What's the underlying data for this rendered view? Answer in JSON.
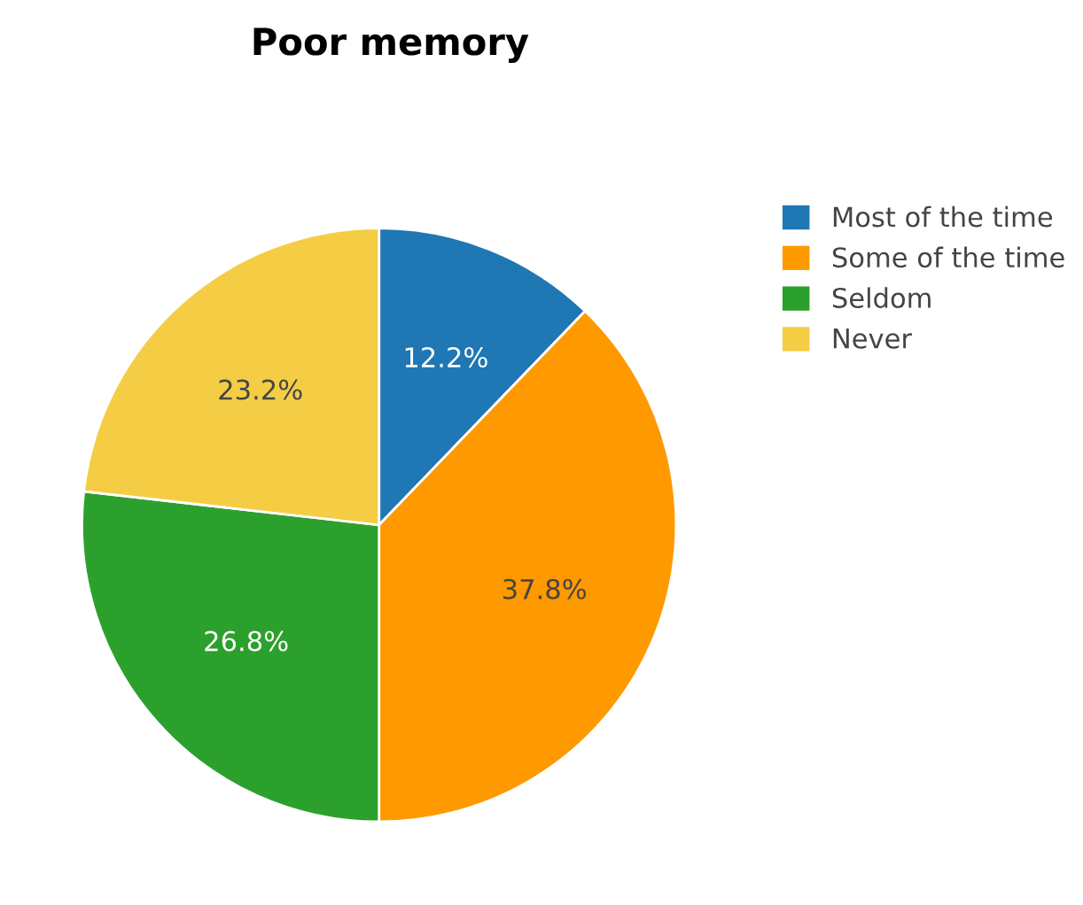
{
  "chart_data": {
    "type": "pie",
    "title": "Poor memory",
    "categories": [
      "Most of the time",
      "Some of the time",
      "Seldom",
      "Never"
    ],
    "values": [
      12.2,
      37.8,
      26.8,
      23.2
    ],
    "colors": [
      "#1f77b4",
      "#ff9900",
      "#2ca02c",
      "#f4cd45"
    ],
    "value_labels": [
      "12.2%",
      "37.8%",
      "26.8%",
      "23.2%"
    ],
    "legend": "top right"
  }
}
